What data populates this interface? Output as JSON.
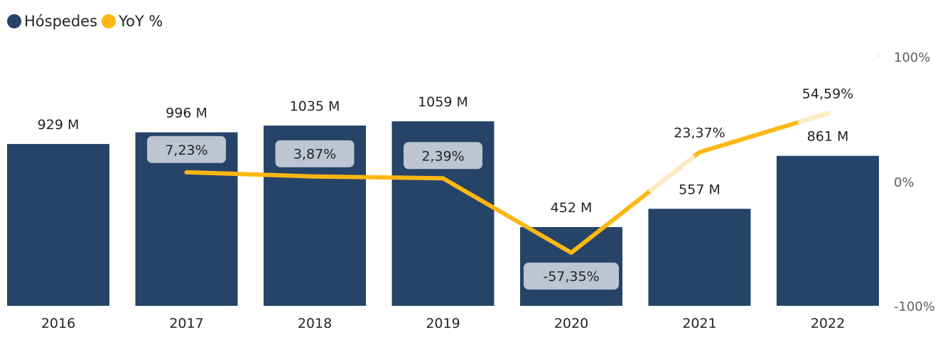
{
  "legend": {
    "bars": {
      "label": "Hóspedes",
      "color": "#264468"
    },
    "line": {
      "label": "YoY %",
      "color": "#FDB713"
    }
  },
  "chart_data": {
    "type": "bar",
    "categories": [
      "2016",
      "2017",
      "2018",
      "2019",
      "2020",
      "2021",
      "2022"
    ],
    "series": [
      {
        "name": "Hóspedes",
        "type": "bar",
        "axis": "left",
        "values": [
          929,
          996,
          1035,
          1059,
          452,
          557,
          861
        ],
        "data_labels": [
          "929 M",
          "996 M",
          "1035 M",
          "1059 M",
          "452 M",
          "557 M",
          "861 M"
        ],
        "color": "#264468"
      },
      {
        "name": "YoY %",
        "type": "line",
        "axis": "right",
        "values": [
          null,
          7.23,
          3.87,
          2.39,
          -57.35,
          23.37,
          54.59
        ],
        "data_labels": [
          "",
          "7,23%",
          "3,87%",
          "2,39%",
          "-57,35%",
          "23,37%",
          "54,59%"
        ],
        "color": "#FDB713"
      }
    ],
    "y_right": {
      "ylim": [
        -100,
        100
      ],
      "ticks": [
        "100%",
        "0%",
        "-100%"
      ]
    },
    "legend_position": "top-left",
    "grid": false
  }
}
